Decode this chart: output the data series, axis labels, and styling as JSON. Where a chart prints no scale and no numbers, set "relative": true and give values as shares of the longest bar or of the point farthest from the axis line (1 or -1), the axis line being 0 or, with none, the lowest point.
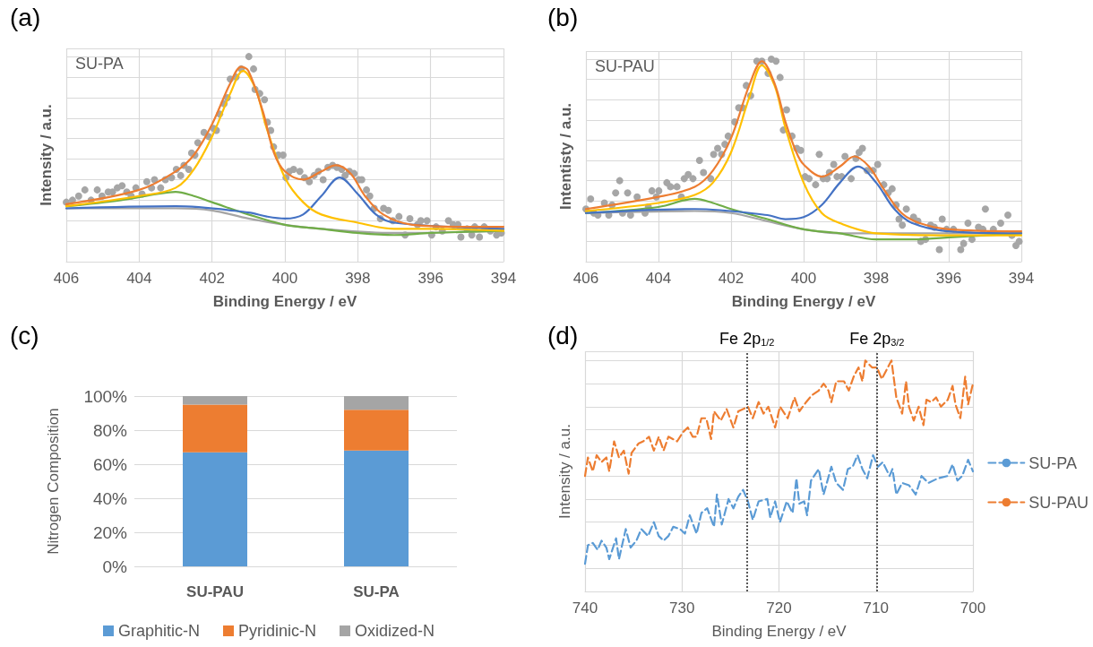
{
  "chart_data": [
    {
      "type": "line",
      "title": "(a)",
      "annotations": [
        "SU-PA"
      ],
      "xlabel": "Binding Energy / eV",
      "ylabel": "Intensity / a.u.",
      "relative": true,
      "xlim": [
        406,
        394
      ],
      "xticks": [
        406,
        404,
        402,
        400,
        398,
        396,
        394
      ],
      "grid": true,
      "tick_labels": "x",
      "marker": "none",
      "series": [
        {
          "type": "scatter",
          "marker": "circle",
          "color": "#a6a6a6",
          "x": [
            406.0,
            405.83,
            405.66,
            405.49,
            405.32,
            405.15,
            405.02,
            404.85,
            404.73,
            404.6,
            404.47,
            404.34,
            404.22,
            404.09,
            403.92,
            403.79,
            403.66,
            403.58,
            403.41,
            403.28,
            403.11,
            402.98,
            402.86,
            402.77,
            402.64,
            402.56,
            402.47,
            402.39,
            402.22,
            402.09,
            401.96,
            401.88,
            401.79,
            401.67,
            401.58,
            401.5,
            401.34,
            401.2,
            400.99,
            400.86,
            400.82,
            400.69,
            400.56,
            400.48,
            400.39,
            400.31,
            400.18,
            400.05,
            399.97,
            399.88,
            399.76,
            399.59,
            399.46,
            399.33,
            399.2,
            399.08,
            398.95,
            398.82,
            398.69,
            398.57,
            398.44,
            398.35,
            398.23,
            398.1,
            397.97,
            397.89,
            397.76,
            397.67,
            397.55,
            397.38,
            397.29,
            397.16,
            397.04,
            396.87,
            396.7,
            396.57,
            396.36,
            396.27,
            396.1,
            395.97,
            395.85,
            395.68,
            395.51,
            395.38,
            395.25,
            395.17,
            395.0,
            394.87,
            394.79,
            394.66,
            394.53,
            394.36,
            394.19,
            394.06
          ],
          "values": [
            0.29,
            0.3,
            0.32,
            0.35,
            0.3,
            0.35,
            0.32,
            0.34,
            0.34,
            0.36,
            0.37,
            0.34,
            0.32,
            0.36,
            0.33,
            0.39,
            0.36,
            0.4,
            0.36,
            0.4,
            0.41,
            0.45,
            0.42,
            0.47,
            0.45,
            0.53,
            0.52,
            0.58,
            0.63,
            0.61,
            0.65,
            0.64,
            0.72,
            0.77,
            0.8,
            0.89,
            0.9,
            0.94,
            1.0,
            0.94,
            0.84,
            0.82,
            0.79,
            0.68,
            0.64,
            0.56,
            0.52,
            0.52,
            0.41,
            0.44,
            0.45,
            0.44,
            0.41,
            0.39,
            0.42,
            0.44,
            0.4,
            0.46,
            0.47,
            0.46,
            0.45,
            0.42,
            0.44,
            0.43,
            0.4,
            0.4,
            0.35,
            0.32,
            0.26,
            0.21,
            0.26,
            0.25,
            0.2,
            0.22,
            0.13,
            0.21,
            0.18,
            0.2,
            0.2,
            0.13,
            0.17,
            0.15,
            0.2,
            0.18,
            0.18,
            0.12,
            0.16,
            0.13,
            0.17,
            0.12,
            0.17,
            0.15,
            0.13,
            0.14
          ]
        },
        {
          "color": "#a5a5a5",
          "x": [
            406,
            403,
            402,
            401,
            400,
            399,
            397,
            394
          ],
          "values": [
            0.26,
            0.26,
            0.25,
            0.21,
            0.18,
            0.16,
            0.14,
            0.15
          ]
        },
        {
          "color": "#70ad47",
          "x": [
            406,
            404.5,
            403.5,
            403,
            402.5,
            402,
            401,
            400,
            399,
            398,
            397,
            396,
            394
          ],
          "values": [
            0.27,
            0.3,
            0.33,
            0.34,
            0.32,
            0.29,
            0.23,
            0.18,
            0.16,
            0.14,
            0.13,
            0.14,
            0.15
          ]
        },
        {
          "color": "#4472c4",
          "x": [
            406,
            403,
            401,
            400.5,
            400,
            399.5,
            399,
            398.5,
            398,
            397.5,
            397,
            396,
            394
          ],
          "values": [
            0.26,
            0.27,
            0.24,
            0.22,
            0.21,
            0.23,
            0.32,
            0.41,
            0.33,
            0.23,
            0.19,
            null,
            0.16
          ]
        },
        {
          "color": "#ffc000",
          "x": [
            406,
            404,
            403,
            402.5,
            402,
            401.5,
            401.15,
            400.8,
            400.5,
            400,
            399.5,
            399,
            398,
            397,
            396,
            394
          ],
          "values": [
            0.27,
            0.32,
            0.36,
            0.45,
            0.61,
            0.82,
            0.93,
            0.84,
            0.65,
            0.41,
            0.29,
            0.23,
            0.19,
            0.16,
            0.16,
            0.15
          ]
        },
        {
          "color": "#ed7d31",
          "x": [
            406,
            404,
            403,
            402.5,
            402,
            401.5,
            401.2,
            401,
            400.6,
            400.3,
            400,
            399.5,
            399,
            398.6,
            398.2,
            397.8,
            397.3,
            396.5,
            395,
            394
          ],
          "values": [
            0.28,
            0.35,
            0.44,
            0.52,
            0.67,
            0.87,
            0.95,
            0.93,
            0.73,
            0.53,
            0.44,
            0.4,
            0.44,
            0.47,
            0.43,
            0.32,
            0.23,
            0.18,
            0.17,
            0.17
          ]
        }
      ]
    },
    {
      "type": "line",
      "title": "(b)",
      "annotations": [
        "SU-PAU"
      ],
      "xlabel": "Binding Energy / eV",
      "ylabel": "Intentisty / a.u.",
      "relative": true,
      "xlim": [
        406,
        394
      ],
      "xticks": [
        406,
        404,
        402,
        400,
        398,
        396,
        394
      ],
      "grid": true,
      "tick_labels": "x",
      "marker": "none",
      "series": [
        {
          "type": "scatter",
          "marker": "circle",
          "color": "#a6a6a6",
          "x": [
            406.0,
            405.87,
            405.78,
            405.67,
            405.49,
            405.37,
            405.28,
            405.18,
            405.07,
            404.99,
            404.85,
            404.77,
            404.59,
            404.37,
            404.28,
            404.18,
            404.06,
            403.99,
            403.77,
            403.67,
            403.49,
            403.37,
            403.29,
            403.18,
            403.05,
            402.87,
            402.76,
            402.56,
            402.48,
            402.37,
            402.26,
            402.17,
            402.08,
            401.9,
            401.79,
            401.68,
            401.58,
            401.46,
            401.29,
            401.15,
            400.98,
            400.89,
            400.76,
            400.65,
            400.56,
            400.47,
            400.32,
            400.19,
            400.08,
            399.96,
            399.85,
            399.67,
            399.57,
            399.46,
            399.35,
            399.29,
            399.17,
            399.08,
            398.95,
            398.86,
            398.69,
            398.56,
            398.47,
            398.38,
            398.25,
            398.09,
            397.96,
            397.79,
            397.67,
            397.56,
            397.45,
            397.37,
            397.28,
            397.17,
            396.97,
            396.85,
            396.77,
            396.64,
            396.5,
            396.4,
            396.26,
            396.18,
            396.06,
            395.87,
            395.67,
            395.59,
            395.47,
            395.36,
            395.18,
            395.06,
            394.99,
            394.77,
            394.57,
            394.37,
            394.26,
            394.15,
            394.06
          ],
          "values": [
            0.26,
            0.31,
            0.24,
            0.23,
            0.29,
            0.23,
            0.28,
            0.34,
            0.4,
            0.24,
            0.34,
            0.23,
            0.32,
            0.24,
            0.27,
            0.35,
            0.32,
            0.35,
            0.39,
            0.37,
            0.37,
            0.32,
            0.41,
            0.43,
            0.41,
            0.5,
            0.44,
            0.41,
            0.53,
            0.56,
            0.53,
            0.58,
            0.62,
            0.69,
            0.76,
            0.76,
            0.87,
            0.82,
            0.99,
            0.99,
            0.93,
            1.0,
            0.99,
            0.91,
            0.65,
            0.75,
            0.62,
            0.56,
            0.55,
            0.42,
            0.41,
            0.38,
            0.53,
            0.41,
            0.41,
            0.44,
            0.48,
            0.42,
            0.42,
            0.52,
            0.41,
            0.51,
            0.54,
            0.56,
            0.45,
            0.45,
            0.48,
            0.38,
            0.34,
            0.36,
            0.28,
            0.21,
            0.18,
            0.26,
            0.22,
            0.2,
            0.1,
            0.11,
            0.18,
            0.17,
            0.06,
            0.21,
            0.16,
            0.16,
            0.06,
            0.09,
            0.19,
            0.11,
            0.17,
            0.16,
            0.26,
            0.16,
            0.19,
            0.23,
            0.13,
            0.08,
            0.1
          ]
        },
        {
          "color": "#a5a5a5",
          "x": [
            406,
            403,
            402,
            401,
            400,
            399,
            397,
            394
          ],
          "values": [
            0.24,
            0.25,
            0.24,
            0.2,
            0.16,
            0.14,
            null,
            0.14
          ]
        },
        {
          "color": "#70ad47",
          "x": [
            406,
            404,
            403,
            402.5,
            402,
            401,
            400,
            399,
            398,
            397,
            396,
            394
          ],
          "values": [
            0.24,
            0.27,
            0.31,
            0.29,
            0.26,
            0.21,
            0.16,
            0.14,
            0.11,
            0.11,
            0.12,
            0.14
          ]
        },
        {
          "color": "#4472c4",
          "x": [
            406,
            403,
            401,
            400.5,
            400,
            399.5,
            399,
            398.5,
            398,
            397.5,
            397,
            396,
            394
          ],
          "values": [
            0.24,
            0.26,
            0.23,
            0.21,
            0.22,
            0.28,
            0.39,
            0.47,
            0.39,
            0.26,
            0.19,
            0.15,
            0.14
          ]
        },
        {
          "color": "#ffc000",
          "x": [
            406,
            404,
            403,
            402.5,
            402,
            401.5,
            401.15,
            400.8,
            400.5,
            400,
            399.5,
            399,
            398,
            396,
            394
          ],
          "values": [
            0.25,
            0.29,
            0.33,
            0.39,
            0.54,
            0.81,
            0.97,
            0.87,
            0.66,
            0.39,
            0.24,
            0.19,
            0.14,
            0.13,
            0.13
          ]
        },
        {
          "color": "#ed7d31",
          "x": [
            406,
            404,
            403,
            402.5,
            402,
            401.5,
            401.15,
            400.8,
            400.5,
            400.2,
            400,
            399.5,
            399,
            398.6,
            398.2,
            397.8,
            397.3,
            396.8,
            396,
            394
          ],
          "values": [
            0.26,
            0.32,
            0.37,
            0.45,
            0.61,
            0.87,
            0.99,
            0.88,
            0.69,
            0.54,
            0.48,
            0.42,
            0.47,
            0.52,
            0.47,
            0.36,
            0.24,
            0.19,
            0.16,
            0.15
          ]
        }
      ]
    },
    {
      "type": "bar",
      "title": "(c)",
      "ylabel": "Nitrogen Composition",
      "categories": [
        "SU-PAU",
        "SU-PA"
      ],
      "stacked": true,
      "ylim": [
        0,
        100
      ],
      "yticks": [
        {
          "value": 0,
          "label": "0%"
        },
        {
          "value": 20,
          "label": "20%"
        },
        {
          "value": 40,
          "label": "40%"
        },
        {
          "value": 60,
          "label": "60%"
        },
        {
          "value": 80,
          "label": "80%"
        },
        {
          "value": 100,
          "label": "100%"
        }
      ],
      "grid": "y",
      "legend": "bottom",
      "series": [
        {
          "name": "Graphitic-N",
          "color": "#5b9bd5",
          "values": [
            67,
            68
          ]
        },
        {
          "name": "Pyridinic-N",
          "color": "#ed7d31",
          "values": [
            28,
            24
          ]
        },
        {
          "name": "Oxidized-N",
          "color": "#a5a5a5",
          "values": [
            5,
            8
          ]
        }
      ]
    },
    {
      "type": "line",
      "title": "(d)",
      "xlabel": "Binding Energy / eV",
      "ylabel": "Intensity / a.u.",
      "relative": true,
      "xlim": [
        740,
        700
      ],
      "xticks": [
        740,
        730,
        720,
        710,
        700
      ],
      "grid": true,
      "tick_labels": "x",
      "marker": "none",
      "line_style": "dashed",
      "legend": "right",
      "ref_lines": [
        {
          "axis": "x",
          "value": 723.3,
          "label": "Fe 2p$_{1/2}$",
          "color": "#595959",
          "line_style": "dotted"
        },
        {
          "axis": "x",
          "value": 709.9,
          "label": "Fe 2p$_{3/2}$",
          "color": "#595959",
          "line_style": "dotted"
        }
      ],
      "series": [
        {
          "name": "SU-PA",
          "color": "#5b9bd5",
          "x": [
            740.0,
            739.7,
            739.2,
            738.7,
            738.3,
            737.8,
            737.5,
            736.8,
            736.5,
            735.8,
            735.3,
            734.7,
            734.2,
            733.5,
            732.9,
            732.4,
            731.9,
            731.4,
            730.9,
            730.2,
            729.7,
            729.2,
            728.5,
            728.0,
            727.4,
            726.7,
            726.4,
            725.9,
            725.2,
            724.7,
            724.2,
            723.7,
            723.2,
            722.7,
            722.1,
            721.2,
            720.9,
            720.4,
            719.9,
            719.2,
            718.6,
            718.2,
            717.9,
            717.4,
            717.1,
            716.7,
            715.9,
            715.4,
            714.6,
            714.1,
            713.4,
            712.9,
            712.4,
            711.9,
            711.4,
            710.9,
            710.3,
            709.8,
            709.3,
            708.6,
            708.3,
            707.9,
            707.3,
            706.6,
            705.9,
            705.3,
            704.6,
            703.6,
            702.6,
            702.1,
            701.6,
            701.1,
            700.5,
            700.0
          ],
          "values": [
            0.12,
            0.2,
            0.21,
            0.18,
            0.22,
            0.19,
            0.14,
            0.23,
            0.14,
            0.27,
            0.19,
            0.22,
            0.27,
            0.24,
            0.3,
            0.24,
            0.22,
            0.24,
            0.28,
            0.27,
            0.25,
            0.33,
            0.25,
            0.34,
            0.36,
            0.28,
            0.42,
            0.29,
            0.4,
            0.36,
            0.41,
            0.44,
            0.39,
            0.31,
            0.39,
            0.4,
            0.32,
            0.39,
            0.3,
            0.39,
            0.34,
            0.49,
            0.38,
            0.39,
            0.33,
            0.48,
            0.53,
            0.42,
            0.54,
            0.47,
            0.44,
            0.53,
            0.54,
            0.59,
            0.53,
            0.49,
            0.59,
            0.54,
            0.56,
            0.5,
            0.53,
            0.42,
            0.47,
            0.46,
            0.42,
            0.5,
            0.47,
            0.49,
            0.5,
            0.55,
            0.48,
            0.5,
            0.57,
            0.52
          ]
        },
        {
          "name": "SU-PAU",
          "color": "#ed7d31",
          "x": [
            740.0,
            739.7,
            739.2,
            738.8,
            738.3,
            737.8,
            737.5,
            737.0,
            736.5,
            736.0,
            735.5,
            735.2,
            734.5,
            734.0,
            733.4,
            732.9,
            732.4,
            731.9,
            731.4,
            730.5,
            729.9,
            729.4,
            728.9,
            728.5,
            728.0,
            727.5,
            727.0,
            726.7,
            726.0,
            725.4,
            724.7,
            724.2,
            723.2,
            722.7,
            722.1,
            721.6,
            721.1,
            720.4,
            719.9,
            719.1,
            718.4,
            717.9,
            717.2,
            716.6,
            715.9,
            715.4,
            714.9,
            714.6,
            714.1,
            713.3,
            712.8,
            712.3,
            711.8,
            711.4,
            711.1,
            710.4,
            709.9,
            709.4,
            708.9,
            708.4,
            707.9,
            707.3,
            706.9,
            706.6,
            706.1,
            705.6,
            705.1,
            704.8,
            704.3,
            703.8,
            703.3,
            702.6,
            702.1,
            701.8,
            701.3,
            700.8,
            700.5,
            700.0
          ],
          "values": [
            0.5,
            0.58,
            0.52,
            0.59,
            0.56,
            0.58,
            0.52,
            0.65,
            0.58,
            0.61,
            0.51,
            0.6,
            0.64,
            0.65,
            0.67,
            0.61,
            0.67,
            0.61,
            0.67,
            0.65,
            0.69,
            0.71,
            0.67,
            0.67,
            0.75,
            0.75,
            0.66,
            0.78,
            0.74,
            0.79,
            0.71,
            0.78,
            0.8,
            0.75,
            0.82,
            0.77,
            0.8,
            0.71,
            0.8,
            0.75,
            0.84,
            0.78,
            0.82,
            0.85,
            0.87,
            0.9,
            0.87,
            0.82,
            0.91,
            0.91,
            0.87,
            0.93,
            0.97,
            0.91,
            1.0,
            0.97,
            0.97,
            0.92,
            0.96,
            1.0,
            0.84,
            0.77,
            0.91,
            0.8,
            0.74,
            0.8,
            0.72,
            0.83,
            0.82,
            0.84,
            0.8,
            0.83,
            0.89,
            0.81,
            0.75,
            0.93,
            0.81,
            0.9
          ]
        }
      ]
    }
  ]
}
